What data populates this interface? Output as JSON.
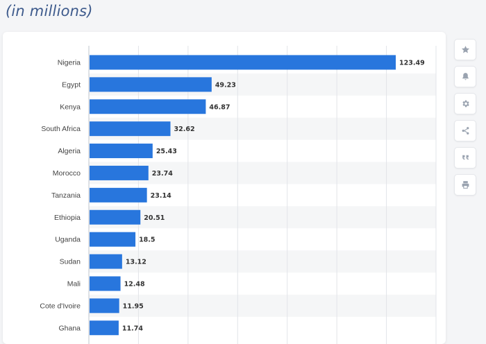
{
  "header": {
    "subtitle": "(in millions)"
  },
  "toolbar": {
    "buttons": [
      {
        "icon": "star-icon"
      },
      {
        "icon": "bell-icon"
      },
      {
        "icon": "gear-icon"
      },
      {
        "icon": "share-icon"
      },
      {
        "icon": "quote-icon"
      },
      {
        "icon": "print-icon"
      }
    ]
  },
  "colors": {
    "bar": "#2876dd",
    "band": "#f5f6f7",
    "grid": "#e2e4e8"
  },
  "chart_data": {
    "type": "bar",
    "orientation": "horizontal",
    "categories": [
      "Nigeria",
      "Egypt",
      "Kenya",
      "South Africa",
      "Algeria",
      "Morocco",
      "Tanzania",
      "Ethiopia",
      "Uganda",
      "Sudan",
      "Mali",
      "Cote d'Ivoire",
      "Ghana"
    ],
    "values": [
      123.49,
      49.23,
      46.87,
      32.62,
      25.43,
      23.74,
      23.14,
      20.51,
      18.5,
      13.12,
      12.48,
      11.95,
      11.74
    ],
    "value_labels": [
      "123.49",
      "49.23",
      "46.87",
      "32.62",
      "25.43",
      "23.74",
      "23.14",
      "20.51",
      "18.5",
      "13.12",
      "12.48",
      "11.95",
      "11.74"
    ],
    "xlim": [
      0,
      140
    ],
    "grid": true,
    "legend": "none"
  }
}
